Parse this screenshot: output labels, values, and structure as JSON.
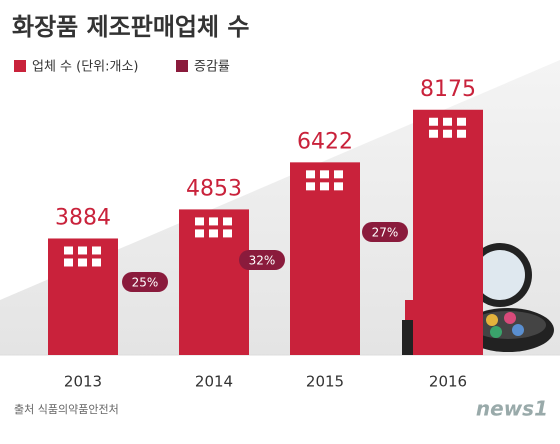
{
  "chart_data": {
    "type": "bar",
    "title": "화장품 제조판매업체 수",
    "categories": [
      "2013",
      "2014",
      "2015",
      "2016"
    ],
    "series": [
      {
        "name": "업체 수 (단위:개소)",
        "color": "#c9223b",
        "values": [
          3884,
          4853,
          6422,
          8175
        ]
      }
    ],
    "growth": {
      "name": "증감률",
      "color": "#8a1b3c",
      "values": [
        25,
        32,
        27
      ],
      "value_labels": [
        "25%",
        "32%",
        "27%"
      ]
    },
    "ylim": [
      0,
      10000
    ],
    "source": "출처 식품의약품안전처",
    "logo": "news1"
  }
}
